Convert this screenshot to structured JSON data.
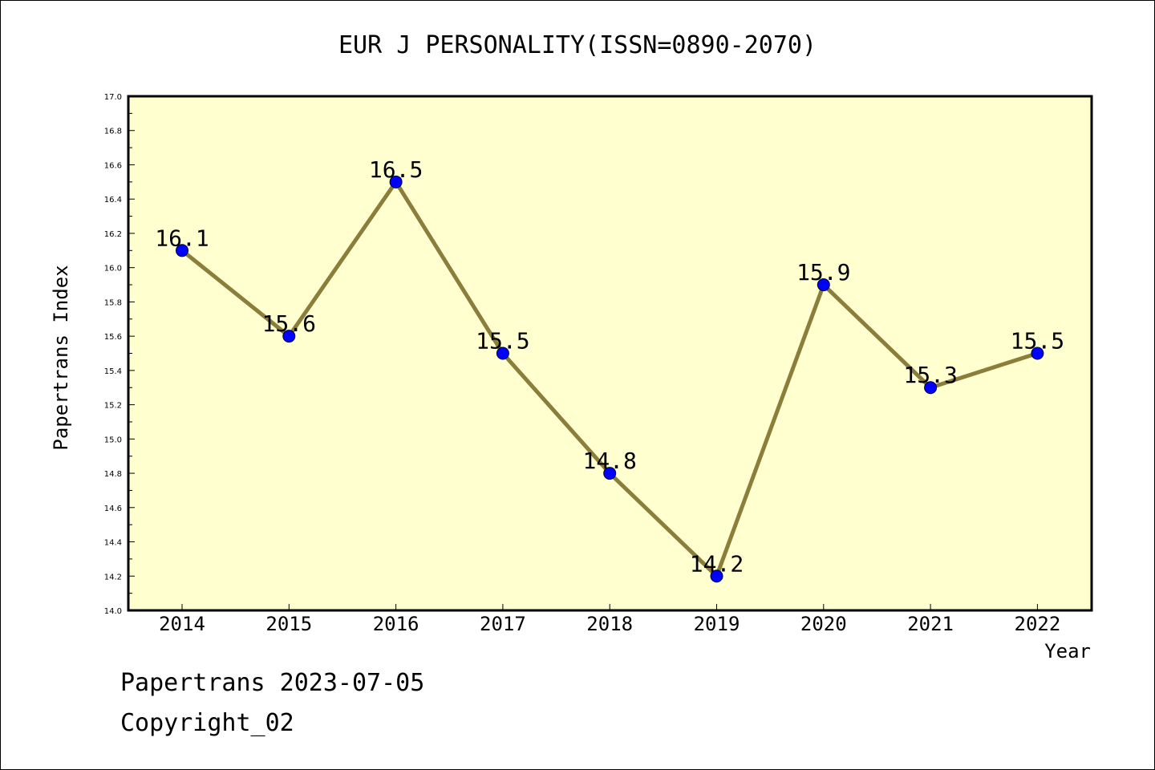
{
  "chart_data": {
    "type": "line",
    "title": "EUR J PERSONALITY(ISSN=0890-2070)",
    "xlabel": "Year",
    "ylabel": "Papertrans Index",
    "categories": [
      "2014",
      "2015",
      "2016",
      "2017",
      "2018",
      "2019",
      "2020",
      "2021",
      "2022"
    ],
    "series": [
      {
        "values": [
          16.1,
          15.6,
          16.5,
          15.5,
          14.8,
          14.2,
          15.9,
          15.3,
          15.5
        ],
        "data_labels": [
          "16.1",
          "15.6",
          "16.5",
          "15.5",
          "14.8",
          "14.2",
          "15.9",
          "15.3",
          "15.5"
        ],
        "line_color": "#8b7d3a",
        "marker_color": "#0000ff"
      }
    ],
    "ylim": [
      14.0,
      17.0
    ],
    "yticks": [
      "14.0",
      "14.2",
      "14.4",
      "14.6",
      "14.8",
      "15.0",
      "15.2",
      "15.4",
      "15.6",
      "15.8",
      "16.0",
      "16.2",
      "16.4",
      "16.6",
      "16.8",
      "17.0"
    ],
    "plot_background": "#ffffd0",
    "grid": false,
    "legend": "none"
  },
  "footer": {
    "line1": "Papertrans 2023-07-05",
    "line2": "Copyright_02"
  }
}
